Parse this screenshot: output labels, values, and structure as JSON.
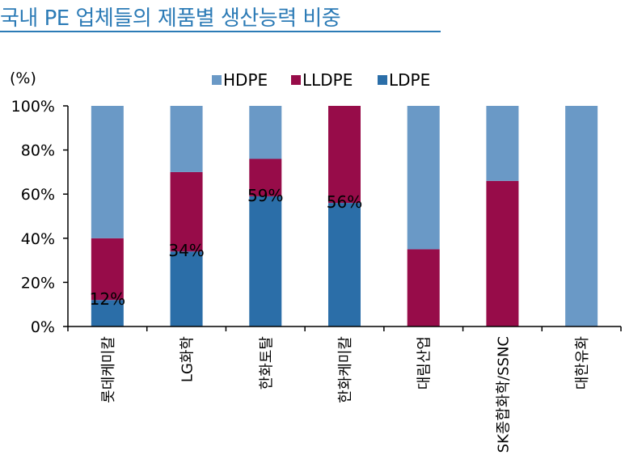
{
  "title": "국내 PE 업체들의 제품별 생산능력 비중",
  "unit_label": "(%)",
  "colors": {
    "HDPE": "#6a99c6",
    "LLDPE": "#970c49",
    "LDPE": "#2b6ea8",
    "axis": "#000000",
    "title": "#2c7bb6"
  },
  "chart_data": {
    "type": "bar",
    "stacked": true,
    "categories": [
      "롯데케미칼",
      "LG화학",
      "한화토탈",
      "한화케미칼",
      "대림산업",
      "SK종합화학/SSNC",
      "대한유화"
    ],
    "series": [
      {
        "name": "LDPE",
        "values": [
          12,
          34,
          59,
          56,
          0,
          0,
          0
        ]
      },
      {
        "name": "LLDPE",
        "values": [
          28,
          36,
          17,
          44,
          35,
          66,
          0
        ]
      },
      {
        "name": "HDPE",
        "values": [
          60,
          30,
          24,
          0,
          65,
          34,
          100
        ]
      }
    ],
    "legend_order": [
      "HDPE",
      "LLDPE",
      "LDPE"
    ],
    "legend_placement": "top",
    "data_labels": [
      "12%",
      "34%",
      "59%",
      "56%",
      "",
      "",
      ""
    ],
    "ylim": [
      0,
      100
    ],
    "yticks": [
      "0%",
      "20%",
      "40%",
      "60%",
      "80%",
      "100%"
    ],
    "grid": false
  }
}
